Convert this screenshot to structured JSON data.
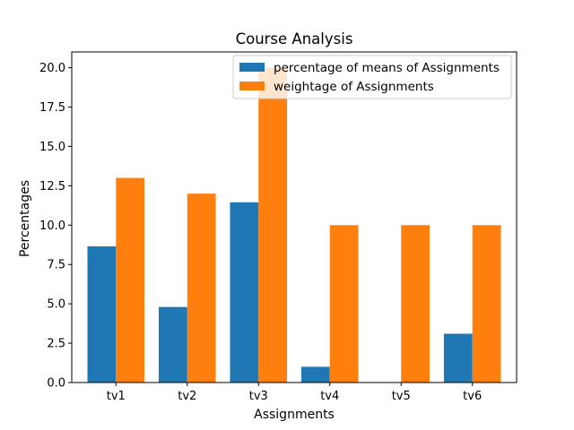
{
  "chart_data": {
    "type": "bar",
    "title": "Course Analysis",
    "xlabel": "Assignments",
    "ylabel": "Percentages",
    "categories": [
      "tv1",
      "tv2",
      "tv3",
      "tv4",
      "tv5",
      "tv6"
    ],
    "series": [
      {
        "name": "percentage of means of Assignments",
        "color": "#1f77b4",
        "values": [
          8.65,
          4.8,
          11.45,
          1.0,
          0.0,
          3.1
        ]
      },
      {
        "name": "weightage of Assignments",
        "color": "#ff7f0e",
        "values": [
          13,
          12,
          20,
          10,
          10,
          10
        ]
      }
    ],
    "ylim": [
      0,
      21
    ],
    "yticks": [
      0.0,
      2.5,
      5.0,
      7.5,
      10.0,
      12.5,
      15.0,
      17.5,
      20.0
    ],
    "ytick_labels": [
      "0.0",
      "2.5",
      "5.0",
      "7.5",
      "10.0",
      "12.5",
      "15.0",
      "17.5",
      "20.0"
    ],
    "grid": false,
    "legend_position": "top-right"
  }
}
